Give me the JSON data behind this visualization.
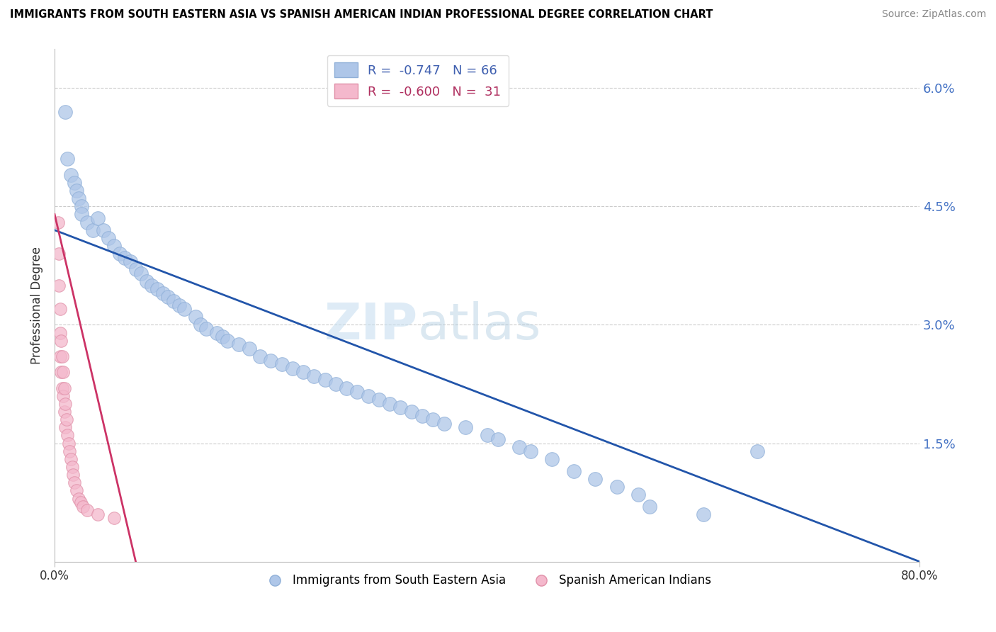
{
  "title": "IMMIGRANTS FROM SOUTH EASTERN ASIA VS SPANISH AMERICAN INDIAN PROFESSIONAL DEGREE CORRELATION CHART",
  "source": "Source: ZipAtlas.com",
  "ylabel": "Professional Degree",
  "legend_blue_r": "-0.747",
  "legend_blue_n": "66",
  "legend_pink_r": "-0.600",
  "legend_pink_n": "31",
  "blue_color": "#aec6e8",
  "blue_line_color": "#2255aa",
  "pink_color": "#f4b8cc",
  "pink_line_color": "#cc3366",
  "watermark_zip": "ZIP",
  "watermark_atlas": "atlas",
  "blue_scatter_x": [
    1.0,
    1.2,
    1.5,
    1.8,
    2.0,
    2.2,
    2.5,
    2.5,
    3.0,
    3.5,
    4.0,
    4.5,
    5.0,
    5.5,
    6.0,
    6.5,
    7.0,
    7.5,
    8.0,
    8.5,
    9.0,
    9.5,
    10.0,
    10.5,
    11.0,
    11.5,
    12.0,
    13.0,
    13.5,
    14.0,
    15.0,
    15.5,
    16.0,
    17.0,
    18.0,
    19.0,
    20.0,
    21.0,
    22.0,
    23.0,
    24.0,
    25.0,
    26.0,
    27.0,
    28.0,
    29.0,
    30.0,
    31.0,
    32.0,
    33.0,
    34.0,
    35.0,
    36.0,
    38.0,
    40.0,
    41.0,
    43.0,
    44.0,
    46.0,
    48.0,
    50.0,
    52.0,
    54.0,
    55.0,
    60.0,
    65.0
  ],
  "blue_scatter_y": [
    5.7,
    5.1,
    4.9,
    4.8,
    4.7,
    4.6,
    4.5,
    4.4,
    4.3,
    4.2,
    4.35,
    4.2,
    4.1,
    4.0,
    3.9,
    3.85,
    3.8,
    3.7,
    3.65,
    3.55,
    3.5,
    3.45,
    3.4,
    3.35,
    3.3,
    3.25,
    3.2,
    3.1,
    3.0,
    2.95,
    2.9,
    2.85,
    2.8,
    2.75,
    2.7,
    2.6,
    2.55,
    2.5,
    2.45,
    2.4,
    2.35,
    2.3,
    2.25,
    2.2,
    2.15,
    2.1,
    2.05,
    2.0,
    1.95,
    1.9,
    1.85,
    1.8,
    1.75,
    1.7,
    1.6,
    1.55,
    1.45,
    1.4,
    1.3,
    1.15,
    1.05,
    0.95,
    0.85,
    0.7,
    0.6,
    1.4
  ],
  "pink_scatter_x": [
    0.3,
    0.4,
    0.4,
    0.5,
    0.5,
    0.5,
    0.6,
    0.6,
    0.7,
    0.7,
    0.8,
    0.8,
    0.9,
    0.9,
    1.0,
    1.0,
    1.1,
    1.2,
    1.3,
    1.4,
    1.5,
    1.6,
    1.7,
    1.8,
    2.0,
    2.2,
    2.4,
    2.6,
    3.0,
    4.0,
    5.5
  ],
  "pink_scatter_y": [
    4.3,
    3.9,
    3.5,
    3.2,
    2.9,
    2.6,
    2.8,
    2.4,
    2.6,
    2.2,
    2.4,
    2.1,
    2.2,
    1.9,
    2.0,
    1.7,
    1.8,
    1.6,
    1.5,
    1.4,
    1.3,
    1.2,
    1.1,
    1.0,
    0.9,
    0.8,
    0.75,
    0.7,
    0.65,
    0.6,
    0.55
  ],
  "blue_line_x0": 0.0,
  "blue_line_y0": 4.2,
  "blue_line_x1": 80.0,
  "blue_line_y1": 0.0,
  "pink_line_x0": 0.0,
  "pink_line_y0": 4.4,
  "pink_line_x1": 7.5,
  "pink_line_y1": 0.0,
  "xmin": 0.0,
  "xmax": 80.0,
  "ymin": 0.0,
  "ymax": 6.5,
  "ytick_vals": [
    0.0,
    1.5,
    3.0,
    4.5,
    6.0
  ],
  "ytick_labels": [
    "",
    "1.5%",
    "3.0%",
    "4.5%",
    "6.0%"
  ],
  "xtick_vals": [
    0,
    80
  ],
  "xtick_labels": [
    "0.0%",
    "80.0%"
  ]
}
